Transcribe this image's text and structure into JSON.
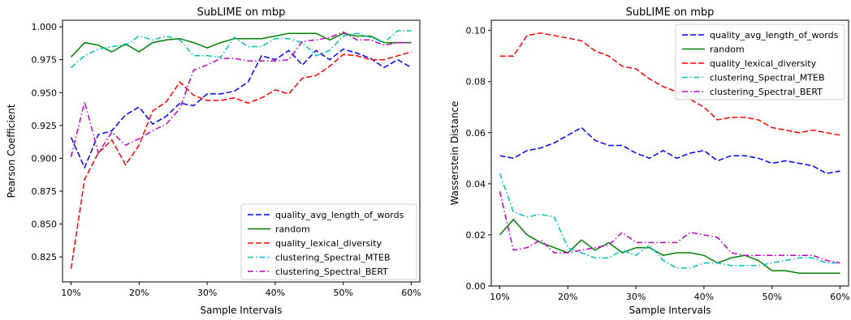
{
  "chart_data": [
    {
      "type": "line",
      "title": "SubLIME on mbp",
      "xlabel": "Sample Intervals",
      "ylabel": "Pearson Coefficient",
      "xlim": [
        8.75,
        61.25
      ],
      "ylim": [
        0.806,
        1.005
      ],
      "x_ticks": [
        10,
        20,
        30,
        40,
        50,
        60
      ],
      "x_tick_labels": [
        "10%",
        "20%",
        "30%",
        "40%",
        "50%",
        "60%"
      ],
      "y_ticks": [
        0.825,
        0.85,
        0.875,
        0.9,
        0.925,
        0.95,
        0.975,
        1.0
      ],
      "y_tick_labels": [
        "0.825",
        "0.850",
        "0.875",
        "0.900",
        "0.925",
        "0.950",
        "0.975",
        "1.000"
      ],
      "grid": false,
      "legend_position": "lower-right",
      "x": [
        10,
        12,
        14,
        16,
        18,
        20,
        22,
        24,
        26,
        28,
        30,
        32,
        34,
        36,
        38,
        40,
        42,
        44,
        46,
        48,
        50,
        52,
        54,
        56,
        58,
        60
      ],
      "series": [
        {
          "name": "quality_avg_length_of_words",
          "color": "#0000ff",
          "style": "dashed",
          "values": [
            0.916,
            0.893,
            0.918,
            0.921,
            0.933,
            0.939,
            0.926,
            0.932,
            0.942,
            0.94,
            0.949,
            0.949,
            0.951,
            0.958,
            0.978,
            0.975,
            0.982,
            0.971,
            0.982,
            0.975,
            0.983,
            0.98,
            0.976,
            0.969,
            0.975,
            0.969
          ]
        },
        {
          "name": "random",
          "color": "#008000",
          "style": "solid",
          "values": [
            0.977,
            0.988,
            0.986,
            0.981,
            0.987,
            0.981,
            0.988,
            0.99,
            0.991,
            0.988,
            0.984,
            0.988,
            0.991,
            0.991,
            0.991,
            0.993,
            0.995,
            0.995,
            0.995,
            0.99,
            0.995,
            0.993,
            0.993,
            0.988,
            0.988,
            0.988
          ]
        },
        {
          "name": "quality_lexical_diversity",
          "color": "#ff0000",
          "style": "dashed",
          "values": [
            0.816,
            0.884,
            0.904,
            0.914,
            0.895,
            0.91,
            0.936,
            0.943,
            0.958,
            0.948,
            0.944,
            0.944,
            0.946,
            0.942,
            0.946,
            0.952,
            0.949,
            0.961,
            0.963,
            0.97,
            0.979,
            0.978,
            0.975,
            0.975,
            0.978,
            0.981
          ]
        },
        {
          "name": "clustering_Spectral_MTEB",
          "color": "#00bfbf",
          "style": "dashdot",
          "values": [
            0.969,
            0.978,
            0.983,
            0.985,
            0.986,
            0.993,
            0.99,
            0.993,
            0.99,
            0.978,
            0.978,
            0.977,
            0.992,
            0.985,
            0.985,
            0.991,
            0.991,
            0.988,
            0.978,
            0.982,
            0.993,
            0.995,
            0.992,
            0.988,
            0.997,
            0.997
          ]
        },
        {
          "name": "clustering_Spectral_BERT",
          "color": "#bf00bf",
          "style": "dashdot",
          "values": [
            0.901,
            0.943,
            0.904,
            0.92,
            0.91,
            0.915,
            0.921,
            0.926,
            0.938,
            0.967,
            0.971,
            0.976,
            0.976,
            0.974,
            0.974,
            0.974,
            0.975,
            0.989,
            0.99,
            0.992,
            0.996,
            0.99,
            0.99,
            0.986,
            0.988,
            0.988
          ]
        }
      ]
    },
    {
      "type": "line",
      "title": "SubLIME on mbp",
      "xlabel": "Sample Intervals",
      "ylabel": "Wasserstein Distance",
      "xlim": [
        8.75,
        61.25
      ],
      "ylim": [
        0.0,
        0.104
      ],
      "x_ticks": [
        10,
        20,
        30,
        40,
        50,
        60
      ],
      "x_tick_labels": [
        "10%",
        "20%",
        "30%",
        "40%",
        "50%",
        "60%"
      ],
      "y_ticks": [
        0.0,
        0.02,
        0.04,
        0.06,
        0.08,
        0.1
      ],
      "y_tick_labels": [
        "0.00",
        "0.02",
        "0.04",
        "0.06",
        "0.08",
        "0.10"
      ],
      "grid": false,
      "legend_position": "upper-right",
      "x": [
        10,
        12,
        14,
        16,
        18,
        20,
        22,
        24,
        26,
        28,
        30,
        32,
        34,
        36,
        38,
        40,
        42,
        44,
        46,
        48,
        50,
        52,
        54,
        56,
        58,
        60
      ],
      "series": [
        {
          "name": "quality_avg_length_of_words",
          "color": "#0000ff",
          "style": "dashed",
          "values": [
            0.051,
            0.05,
            0.053,
            0.054,
            0.056,
            0.059,
            0.062,
            0.057,
            0.055,
            0.055,
            0.052,
            0.05,
            0.053,
            0.05,
            0.052,
            0.053,
            0.049,
            0.051,
            0.051,
            0.05,
            0.048,
            0.049,
            0.048,
            0.047,
            0.044,
            0.045
          ]
        },
        {
          "name": "random",
          "color": "#008000",
          "style": "solid",
          "values": [
            0.02,
            0.026,
            0.02,
            0.017,
            0.015,
            0.013,
            0.018,
            0.014,
            0.017,
            0.013,
            0.015,
            0.015,
            0.012,
            0.013,
            0.013,
            0.012,
            0.009,
            0.011,
            0.012,
            0.01,
            0.006,
            0.006,
            0.005,
            0.005,
            0.005,
            0.005
          ]
        },
        {
          "name": "quality_lexical_diversity",
          "color": "#ff0000",
          "style": "dashed",
          "values": [
            0.09,
            0.09,
            0.098,
            0.099,
            0.098,
            0.097,
            0.096,
            0.092,
            0.09,
            0.086,
            0.085,
            0.081,
            0.078,
            0.076,
            0.073,
            0.07,
            0.065,
            0.066,
            0.066,
            0.065,
            0.062,
            0.061,
            0.06,
            0.061,
            0.06,
            0.059
          ]
        },
        {
          "name": "clustering_Spectral_MTEB",
          "color": "#00bfbf",
          "style": "dashdot",
          "values": [
            0.044,
            0.029,
            0.027,
            0.028,
            0.027,
            0.015,
            0.013,
            0.011,
            0.011,
            0.014,
            0.012,
            0.016,
            0.01,
            0.007,
            0.007,
            0.009,
            0.009,
            0.008,
            0.008,
            0.008,
            0.009,
            0.01,
            0.011,
            0.011,
            0.009,
            0.009
          ]
        },
        {
          "name": "clustering_Spectral_BERT",
          "color": "#bf00bf",
          "style": "dashdot",
          "values": [
            0.037,
            0.014,
            0.015,
            0.018,
            0.013,
            0.013,
            0.014,
            0.015,
            0.016,
            0.021,
            0.017,
            0.017,
            0.017,
            0.017,
            0.021,
            0.02,
            0.019,
            0.013,
            0.012,
            0.012,
            0.012,
            0.012,
            0.012,
            0.012,
            0.01,
            0.009
          ]
        }
      ]
    }
  ]
}
